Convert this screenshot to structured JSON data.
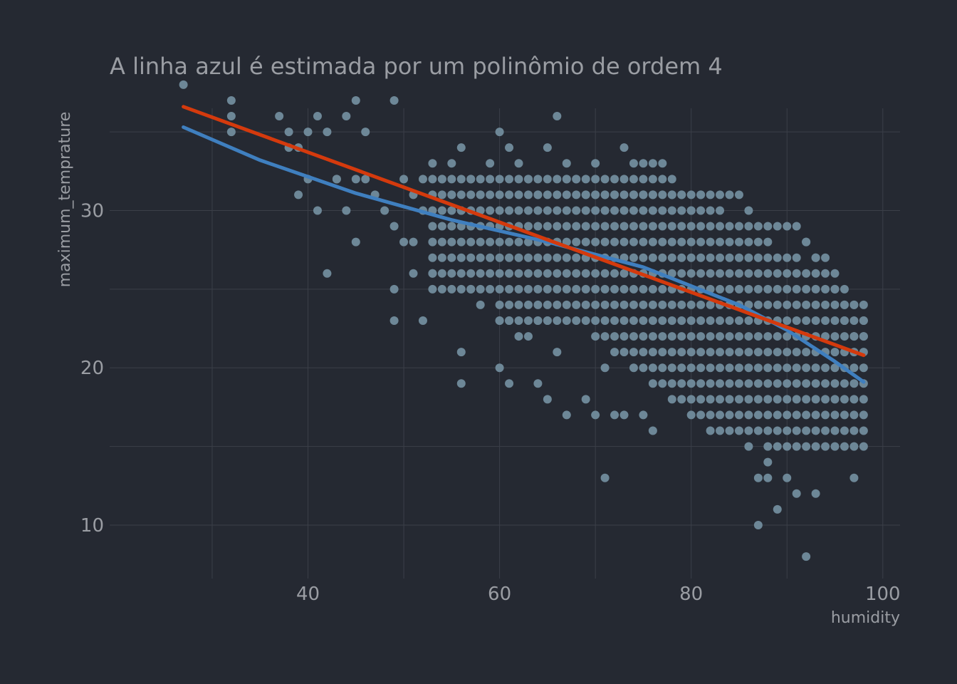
{
  "chart_data": {
    "type": "scatter",
    "title": "A linha azul é estimada por um polinômio de ordem 4",
    "xlabel": "humidity",
    "ylabel": "maximum_temprature",
    "xlim": [
      19.3,
      101.8
    ],
    "ylim": [
      6.6,
      36.5
    ],
    "x_ticks": [
      40,
      60,
      80,
      100
    ],
    "x_tick_labels": [
      "40",
      "60",
      "80",
      "100"
    ],
    "y_ticks": [
      10,
      20,
      30
    ],
    "y_tick_labels": [
      "10",
      "20",
      "30"
    ],
    "grid": true,
    "legend": "none",
    "colors": {
      "background": "#252932",
      "grid": "#3b3f48",
      "points": "#6d8797",
      "poly_line": "#3f7fbf",
      "linear_line": "#d43a0d",
      "text": "#9a9da3"
    },
    "series": [
      {
        "kind": "points",
        "x": [
          27,
          32,
          32,
          32,
          37,
          38,
          38,
          39,
          40,
          40,
          41,
          42,
          43,
          44,
          45,
          45,
          46,
          46,
          47,
          48,
          49,
          49,
          50,
          50,
          51,
          51,
          52,
          52,
          53,
          53,
          54,
          55,
          55,
          56,
          56,
          57,
          58,
          59,
          60,
          61,
          62,
          63,
          64,
          65,
          66,
          67,
          67,
          68,
          69,
          70,
          70,
          71,
          72,
          73,
          74,
          74,
          75,
          76,
          77,
          78,
          79,
          80,
          81,
          82,
          83,
          84,
          85,
          86,
          87,
          88,
          89,
          90,
          91,
          92,
          92,
          93,
          93,
          94,
          94,
          95,
          95,
          96,
          96,
          97,
          97,
          98,
          98,
          56,
          56,
          60,
          61,
          63,
          64,
          65,
          66,
          67,
          69,
          70,
          71,
          72,
          73,
          75,
          76,
          87,
          89,
          92,
          86,
          88,
          90,
          71,
          87,
          88,
          91,
          93,
          97,
          39,
          41,
          43,
          42,
          44,
          45,
          49,
          49,
          51,
          52,
          57,
          58,
          60,
          61,
          62,
          64,
          65
        ],
        "y": [
          38,
          37,
          36,
          35,
          36,
          35,
          34,
          34,
          35,
          32,
          36,
          35,
          32,
          36,
          37,
          32,
          35,
          32,
          31,
          30,
          37,
          29,
          28,
          32,
          31,
          28,
          32,
          30,
          26,
          33,
          32,
          33,
          31,
          34,
          30,
          32,
          31,
          33,
          35,
          34,
          33,
          32,
          31,
          34,
          36,
          33,
          32,
          32,
          31,
          31,
          33,
          31,
          31,
          34,
          33,
          31,
          31,
          31,
          33,
          31,
          31,
          30,
          31,
          31,
          31,
          31,
          31,
          30,
          29,
          29,
          29,
          29,
          29,
          28,
          28,
          27,
          27,
          27,
          26,
          26,
          25,
          24,
          23,
          24,
          22,
          23,
          22,
          21,
          19,
          20,
          19,
          22,
          19,
          18,
          21,
          17,
          18,
          17,
          20,
          17,
          17,
          17,
          16,
          10,
          11,
          8,
          15,
          13,
          13,
          13,
          13,
          14,
          12,
          12,
          13,
          31,
          30,
          32,
          26,
          30,
          28,
          25,
          23,
          26,
          23,
          25,
          24,
          23,
          23,
          22,
          23,
          23
        ]
      },
      {
        "name": "",
        "kind": "line",
        "x": [
          27,
          35,
          45,
          55,
          65,
          75,
          85,
          90,
          95,
          98
        ],
        "y": [
          35.3,
          33.2,
          31.1,
          29.4,
          28.0,
          26.4,
          24.0,
          22.4,
          20.4,
          19.1
        ]
      },
      {
        "name": "",
        "kind": "line",
        "x": [
          27,
          98
        ],
        "y": [
          36.6,
          20.8
        ]
      }
    ]
  }
}
